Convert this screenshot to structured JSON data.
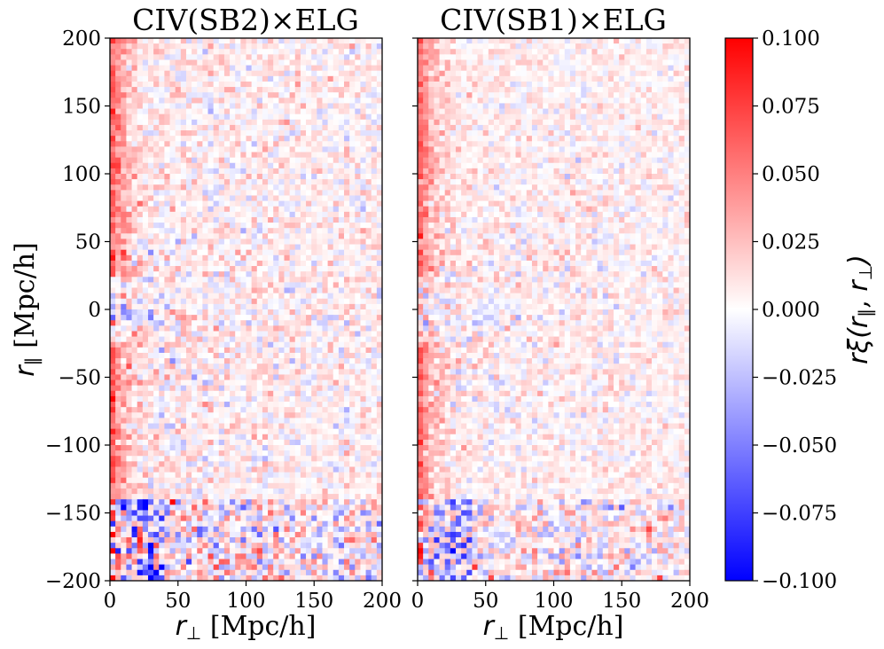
{
  "chart_data": {
    "type": "heatmap",
    "panels": [
      {
        "title": "CIV(SB2)×ELG",
        "xlabel_symbol": "r",
        "xlabel_sub": "⊥",
        "xlabel_unit": " [Mpc/h]",
        "ylabel_symbol": "r",
        "ylabel_sub": "∥",
        "ylabel_unit": " [Mpc/h]",
        "xlim": [
          0,
          200
        ],
        "ylim": [
          -200,
          200
        ],
        "x_ticks": [
          0,
          50,
          100,
          150,
          200
        ],
        "x_tick_labels": [
          "0",
          "50",
          "100",
          "150",
          "200"
        ],
        "y_ticks": [
          200,
          150,
          100,
          50,
          0,
          -50,
          -100,
          -150,
          -200
        ],
        "y_tick_labels": [
          "200",
          "150",
          "100",
          "50",
          "0",
          "−50",
          "−100",
          "−150",
          "−200"
        ],
        "grid": false,
        "bin_size_mpc": 4,
        "pattern": {
          "seed": 7,
          "edge_excess": 0.07,
          "edge_deficit_bins_low_y": -0.09,
          "line_of_sight_dip": -0.02,
          "background_level": 0.005,
          "noise_scale": 0.01
        }
      },
      {
        "title": "CIV(SB1)×ELG",
        "xlabel_symbol": "r",
        "xlabel_sub": "⊥",
        "xlabel_unit": " [Mpc/h]",
        "xlim": [
          0,
          200
        ],
        "ylim": [
          -200,
          200
        ],
        "x_ticks": [
          0,
          50,
          100,
          150,
          200
        ],
        "x_tick_labels": [
          "0",
          "50",
          "100",
          "150",
          "200"
        ],
        "grid": false,
        "bin_size_mpc": 4,
        "pattern": {
          "seed": 19,
          "edge_excess": 0.065,
          "edge_deficit_bins_low_y": -0.07,
          "line_of_sight_dip": -0.018,
          "background_level": 0.005,
          "noise_scale": 0.008
        }
      }
    ],
    "colorbar": {
      "label_prefix": "r",
      "label_xi": "ξ(",
      "label_r": "r",
      "label_par_sub": "∥",
      "label_sep": ", ",
      "label_perp_sub": "⊥",
      "label_close": ")",
      "vmin": -0.1,
      "vmax": 0.1,
      "ticks": [
        0.1,
        0.075,
        0.05,
        0.025,
        0.0,
        -0.025,
        -0.05,
        -0.075,
        -0.1
      ],
      "tick_labels": [
        "0.100",
        "0.075",
        "0.050",
        "0.025",
        "0.000",
        "−0.025",
        "−0.050",
        "−0.075",
        "−0.100"
      ],
      "colormap": "bwr",
      "colors": {
        "low": "#0000ff",
        "mid": "#ffffff",
        "high": "#ff0000"
      }
    }
  }
}
